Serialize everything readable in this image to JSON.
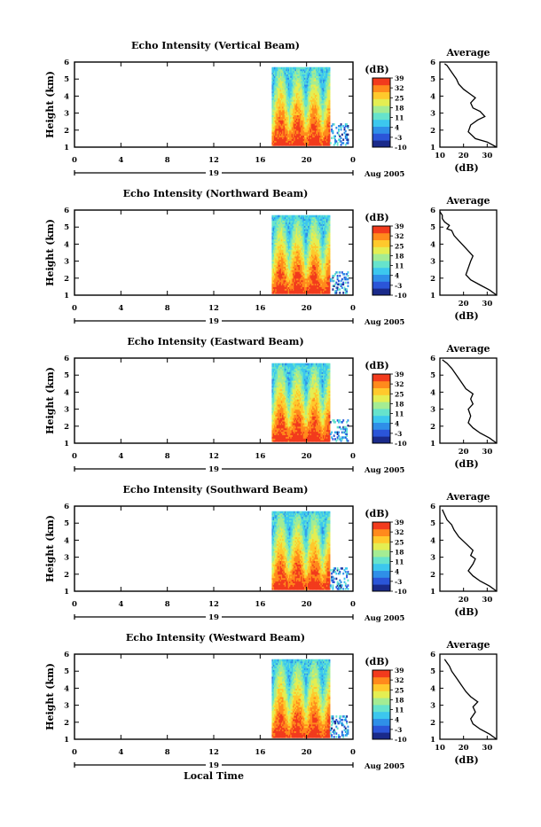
{
  "figure": {
    "xlabel": "Local Time",
    "time_ticks": [
      "0",
      "4",
      "8",
      "12",
      "16",
      "20",
      "0"
    ],
    "day_label": "19",
    "date_label": "Aug 2005",
    "height_ticks": [
      "1",
      "2",
      "3",
      "4",
      "5",
      "6"
    ],
    "ylabel": "Height (km)",
    "colorbar_label": "(dB)",
    "colorbar_ticks": [
      "-10",
      "-3",
      "4",
      "11",
      "18",
      "25",
      "32",
      "39"
    ],
    "colorbar_range": [
      -10,
      39
    ],
    "avg_title": "Average",
    "avg_xlabel": "(dB)",
    "avg_xticks_set1": [
      "10",
      "20",
      "30"
    ],
    "avg_xticks_set2": [
      "20",
      "30"
    ],
    "colormap": [
      "#1a2a8a",
      "#2b55d8",
      "#2f8fe8",
      "#3cc7ee",
      "#66e3cc",
      "#a4ec93",
      "#e4ee52",
      "#ffc92c",
      "#ff8a1c",
      "#f23b1d"
    ]
  },
  "panels": [
    {
      "title": "Echo Intensity (Vertical Beam)",
      "avg_xticks": [
        "10",
        "20",
        "30"
      ],
      "avg_xlim": [
        10,
        34
      ],
      "avg_profile": [
        [
          34,
          1
        ],
        [
          30,
          1.3
        ],
        [
          25,
          1.5
        ],
        [
          22,
          1.9
        ],
        [
          23,
          2.3
        ],
        [
          26,
          2.6
        ],
        [
          29,
          2.8
        ],
        [
          27,
          3.1
        ],
        [
          24,
          3.3
        ],
        [
          23,
          3.6
        ],
        [
          25,
          3.9
        ],
        [
          23,
          4.1
        ],
        [
          20,
          4.4
        ],
        [
          18,
          4.7
        ],
        [
          17,
          5.0
        ],
        [
          16,
          5.2
        ],
        [
          15,
          5.4
        ],
        [
          14,
          5.6
        ],
        [
          13,
          5.8
        ],
        [
          12,
          5.9
        ]
      ]
    },
    {
      "title": "Echo Intensity (Northward Beam)",
      "avg_xticks": [
        "20",
        "30"
      ],
      "avg_xlim": [
        10,
        34
      ],
      "avg_profile": [
        [
          34,
          1
        ],
        [
          31,
          1.3
        ],
        [
          27,
          1.6
        ],
        [
          23,
          1.9
        ],
        [
          21,
          2.2
        ],
        [
          22,
          2.6
        ],
        [
          23,
          3.0
        ],
        [
          24,
          3.3
        ],
        [
          22,
          3.6
        ],
        [
          20,
          3.9
        ],
        [
          18,
          4.2
        ],
        [
          16,
          4.5
        ],
        [
          15,
          4.8
        ],
        [
          13,
          4.9
        ],
        [
          14,
          5.1
        ],
        [
          12,
          5.3
        ],
        [
          11,
          5.5
        ],
        [
          11,
          5.7
        ],
        [
          10,
          5.9
        ]
      ]
    },
    {
      "title": "Echo Intensity (Eastward Beam)",
      "avg_xticks": [
        "20",
        "30"
      ],
      "avg_xlim": [
        10,
        34
      ],
      "avg_profile": [
        [
          34,
          1
        ],
        [
          31,
          1.3
        ],
        [
          27,
          1.6
        ],
        [
          24,
          1.9
        ],
        [
          22,
          2.2
        ],
        [
          23,
          2.6
        ],
        [
          22,
          3.0
        ],
        [
          24,
          3.3
        ],
        [
          23,
          3.6
        ],
        [
          24,
          3.9
        ],
        [
          21,
          4.2
        ],
        [
          19,
          4.6
        ],
        [
          17,
          5.0
        ],
        [
          15,
          5.4
        ],
        [
          13,
          5.7
        ],
        [
          11,
          5.9
        ]
      ]
    },
    {
      "title": "Echo Intensity (Southward Beam)",
      "avg_xticks": [
        "20",
        "30"
      ],
      "avg_xlim": [
        10,
        34
      ],
      "avg_profile": [
        [
          34,
          1
        ],
        [
          31,
          1.3
        ],
        [
          27,
          1.6
        ],
        [
          24,
          1.9
        ],
        [
          22,
          2.2
        ],
        [
          24,
          2.6
        ],
        [
          25,
          2.9
        ],
        [
          23,
          3.1
        ],
        [
          24,
          3.4
        ],
        [
          21,
          3.8
        ],
        [
          18,
          4.2
        ],
        [
          16,
          4.6
        ],
        [
          15,
          4.9
        ],
        [
          13,
          5.2
        ],
        [
          12,
          5.5
        ],
        [
          11,
          5.8
        ]
      ]
    },
    {
      "title": "Echo Intensity (Westward Beam)",
      "avg_xticks": [
        "10",
        "20",
        "30"
      ],
      "avg_xlim": [
        10,
        34
      ],
      "avg_profile": [
        [
          34,
          1
        ],
        [
          31,
          1.3
        ],
        [
          27,
          1.6
        ],
        [
          24,
          1.9
        ],
        [
          23,
          2.2
        ],
        [
          25,
          2.6
        ],
        [
          24,
          2.9
        ],
        [
          26,
          3.2
        ],
        [
          23,
          3.5
        ],
        [
          21,
          3.8
        ],
        [
          19,
          4.2
        ],
        [
          17,
          4.6
        ],
        [
          15,
          5.0
        ],
        [
          14,
          5.3
        ],
        [
          13,
          5.5
        ],
        [
          12,
          5.7
        ]
      ]
    }
  ],
  "chart_data": {
    "type": "heatmap",
    "x": "local time (h)",
    "xlim": [
      0,
      24
    ],
    "ylim": [
      1,
      6
    ],
    "data_extent_time": [
      17,
      22
    ],
    "data_extent_height": [
      1.1,
      5.6
    ],
    "colorbar": {
      "label": "(dB)",
      "min": -10,
      "max": 39
    },
    "series": [
      {
        "name": "Vertical Beam"
      },
      {
        "name": "Northward Beam"
      },
      {
        "name": "Eastward Beam"
      },
      {
        "name": "Southward Beam"
      },
      {
        "name": "Westward Beam"
      }
    ]
  }
}
